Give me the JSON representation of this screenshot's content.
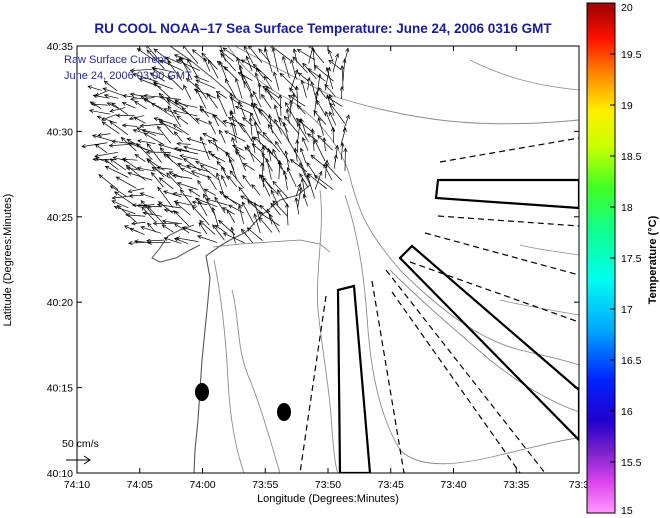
{
  "title": "RU COOL   NOAA–17  Sea Surface Temperature:  June 24, 2006 0316 GMT",
  "legend": {
    "line1": "Raw Surface Current",
    "line2": "June 24, 2006 03:00 GMT"
  },
  "scale_label": "50 cm/s",
  "x_axis": {
    "label": "Longitude (Degrees:Minutes)",
    "ticks": [
      "74:10",
      "74:05",
      "74:00",
      "73:55",
      "73:50",
      "73:45",
      "73:40",
      "73:35",
      "73:3"
    ]
  },
  "y_axis": {
    "label": "Latitude (Degrees:Minutes)",
    "ticks": [
      "40:35",
      "40:30",
      "40:25",
      "40:20",
      "40:15",
      "40:10"
    ]
  },
  "colorbar": {
    "label": "Temperature (°C)",
    "ticks": [
      "20",
      "19.5",
      "19",
      "18.5",
      "18",
      "17.5",
      "17",
      "16.5",
      "16",
      "15.5",
      "15"
    ],
    "range": [
      15,
      20
    ]
  },
  "colors": {
    "title": "#1a1aa0",
    "legend_text": "#2a2a9a",
    "contour": "#8c8c8c",
    "land_outline": "#666666"
  }
}
